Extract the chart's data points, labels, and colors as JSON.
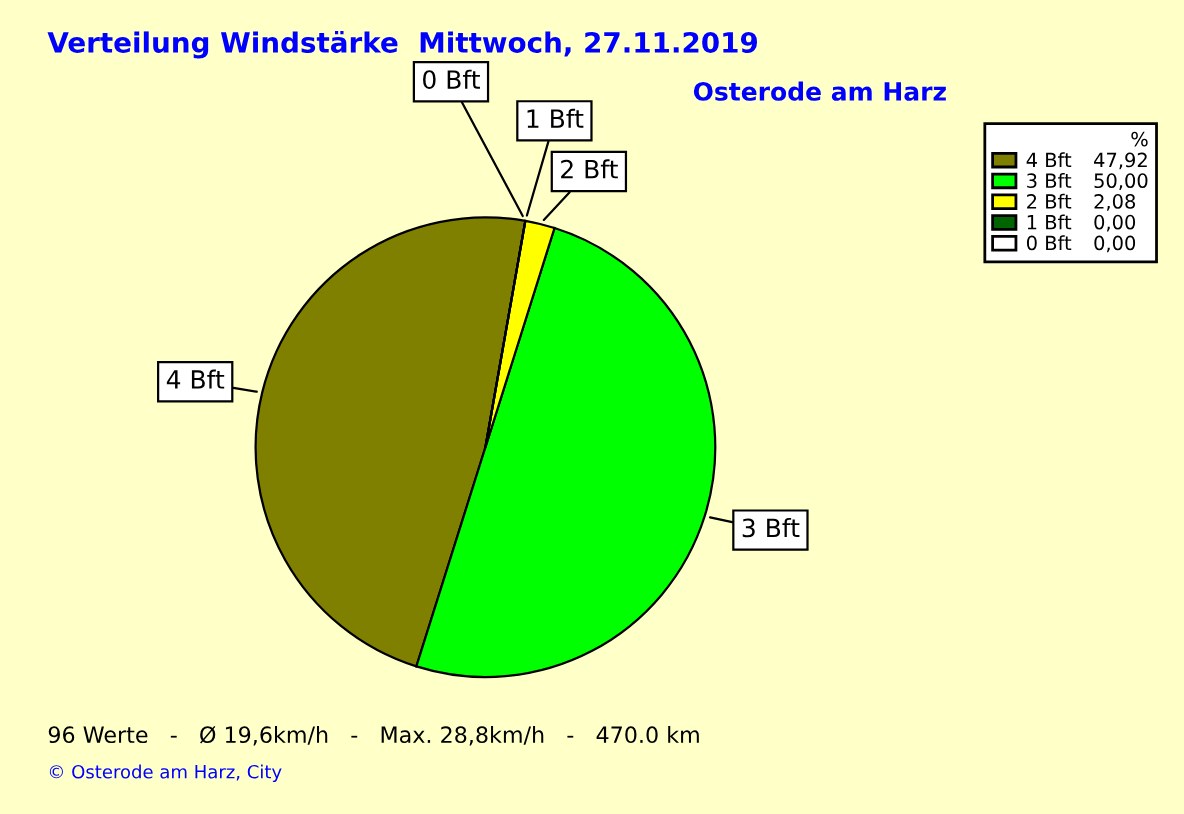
{
  "chart_data": {
    "type": "pie",
    "title": "Verteilung Windstärke  Mittwoch, 27.11.2019",
    "subtitle": "Osterode am Harz",
    "categories": [
      "4 Bft",
      "3 Bft",
      "2 Bft",
      "1 Bft",
      "0 Bft"
    ],
    "values": [
      47.92,
      50.0,
      2.08,
      0.0,
      0.0
    ],
    "value_labels": [
      "47,92",
      "50,00",
      "2,08",
      "0,00",
      "0,00"
    ],
    "colors": [
      "#808000",
      "#00ff00",
      "#ffff00",
      "#006400",
      "#ffffff"
    ],
    "legend": "top right",
    "legend_title": "%",
    "annotations": [
      "96 Werte   -   Ø 19,6km/h   -   Max. 28,8km/h   -   470.0 km",
      "© Osterode am Harz, City"
    ]
  }
}
